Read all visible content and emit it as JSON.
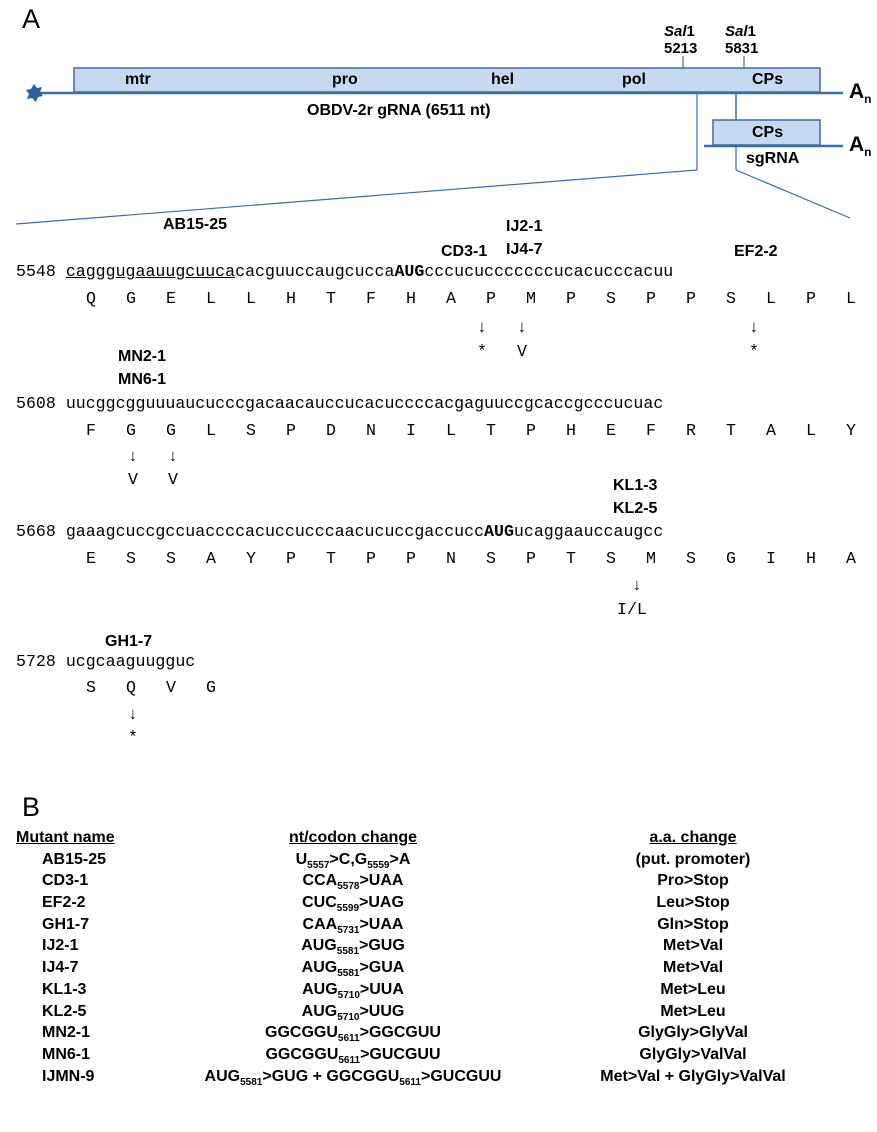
{
  "panel_a": {
    "letter": "A",
    "genome": {
      "domains": [
        "mtr",
        "pro",
        "hel",
        "pol",
        "CPs"
      ],
      "label": "OBDV-2r gRNA (6511 nt)",
      "polyA": "A",
      "polyA_sub": "n",
      "sites": [
        {
          "enzyme": "Sal",
          "suffix": "1",
          "pos": "5213"
        },
        {
          "enzyme": "Sal",
          "suffix": "1",
          "pos": "5831"
        }
      ]
    },
    "sgrna": {
      "box": "CPs",
      "label": "sgRNA",
      "polyA": "A",
      "polyA_sub": "n"
    },
    "rows": [
      {
        "pos": "5548",
        "seq_ul": "cagggugaauugcuuca",
        "seq_a": "cacguuccaugcucca",
        "seq_bold": "AUG",
        "seq_b": "cccucucccccccucacucccacuu",
        "aa": [
          "Q",
          "G",
          "E",
          "L",
          "L",
          "H",
          "T",
          "F",
          "H",
          "A",
          "P",
          "M",
          "P",
          "S",
          "P",
          "P",
          "S",
          "L",
          "P",
          "L"
        ],
        "labels": {
          "ab": "AB15-25",
          "cd": "CD3-1",
          "ij1": "IJ2-1",
          "ij2": "IJ4-7",
          "ef": "EF2-2"
        },
        "muts": [
          {
            "arrow": "↓",
            "res": "*"
          },
          {
            "arrow": "↓",
            "res": "V"
          },
          {
            "arrow": "↓",
            "res": "*"
          }
        ]
      },
      {
        "pos": "5608",
        "seq": "uucggcgguuuaucucccgacaacauccucacuccccacgaguuccgcaccgcccucuac",
        "aa": [
          "F",
          "G",
          "G",
          "L",
          "S",
          "P",
          "D",
          "N",
          "I",
          "L",
          "T",
          "P",
          "H",
          "E",
          "F",
          "R",
          "T",
          "A",
          "L",
          "Y"
        ],
        "labels": {
          "mn1": "MN2-1",
          "mn2": "MN6-1"
        },
        "muts": [
          {
            "arrow": "↓",
            "res": "V"
          },
          {
            "arrow": "↓",
            "res": "V"
          }
        ]
      },
      {
        "pos": "5668",
        "seq_a": "gaaagcuccgccuaccccacuccucccaacucuccgaccucc",
        "seq_bold": "AUG",
        "seq_b": "ucaggaauccaugcc",
        "aa": [
          "E",
          "S",
          "S",
          "A",
          "Y",
          "P",
          "T",
          "P",
          "P",
          "N",
          "S",
          "P",
          "T",
          "S",
          "M",
          "S",
          "G",
          "I",
          "H",
          "A"
        ],
        "labels": {
          "kl1": "KL1-3",
          "kl2": "KL2-5"
        },
        "muts": [
          {
            "arrow": "↓",
            "res": "I/L"
          }
        ]
      },
      {
        "pos": "5728",
        "seq": "ucgcaaguugguc",
        "aa": [
          "S",
          "Q",
          "V",
          "G"
        ],
        "labels": {
          "gh": "GH1-7"
        },
        "muts": [
          {
            "arrow": "↓",
            "res": "*"
          }
        ]
      }
    ]
  },
  "panel_b": {
    "letter": "B",
    "headers": [
      "Mutant name",
      "nt/codon change",
      "a.a. change"
    ],
    "rows": [
      {
        "name": "AB15-25",
        "nt": [
          [
            "U",
            "5557",
            ">C,G"
          ],
          [
            "",
            "5559",
            ">A"
          ]
        ],
        "aa": "(put. promoter)"
      },
      {
        "name": "CD3-1",
        "nt": [
          [
            "CCA",
            "5578",
            ">UAA"
          ]
        ],
        "aa": "Pro>Stop"
      },
      {
        "name": "EF2-2",
        "nt": [
          [
            "CUC",
            "5599",
            ">UAG"
          ]
        ],
        "aa": "Leu>Stop"
      },
      {
        "name": "GH1-7",
        "nt": [
          [
            "CAA",
            "5731",
            ">UAA"
          ]
        ],
        "aa": "Gln>Stop"
      },
      {
        "name": "IJ2-1",
        "nt": [
          [
            "AUG",
            "5581",
            ">GUG"
          ]
        ],
        "aa": "Met>Val"
      },
      {
        "name": "IJ4-7",
        "nt": [
          [
            "AUG",
            "5581",
            ">GUA"
          ]
        ],
        "aa": "Met>Val"
      },
      {
        "name": "KL1-3",
        "nt": [
          [
            "AUG",
            "5710",
            ">UUA"
          ]
        ],
        "aa": "Met>Leu"
      },
      {
        "name": "KL2-5",
        "nt": [
          [
            "AUG",
            "5710",
            ">UUG"
          ]
        ],
        "aa": "Met>Leu"
      },
      {
        "name": "MN2-1",
        "nt": [
          [
            "GGCGGU",
            "5611",
            ">GGCGUU"
          ]
        ],
        "aa": "GlyGly>GlyVal"
      },
      {
        "name": "MN6-1",
        "nt": [
          [
            "GGCGGU",
            "5611",
            ">GUCGUU"
          ]
        ],
        "aa": "GlyGly>ValVal"
      },
      {
        "name": "IJMN-9",
        "nt": [
          [
            "AUG",
            "5581",
            ">GUG + GGCGGU"
          ],
          [
            "",
            "5611",
            ">GUCGUU"
          ]
        ],
        "aa": "Met>Val + GlyGly>ValVal"
      }
    ]
  },
  "colors": {
    "box_fill": "#c6d9f1",
    "line": "#3a6ea5",
    "box_stroke": "#3a6ea5"
  }
}
